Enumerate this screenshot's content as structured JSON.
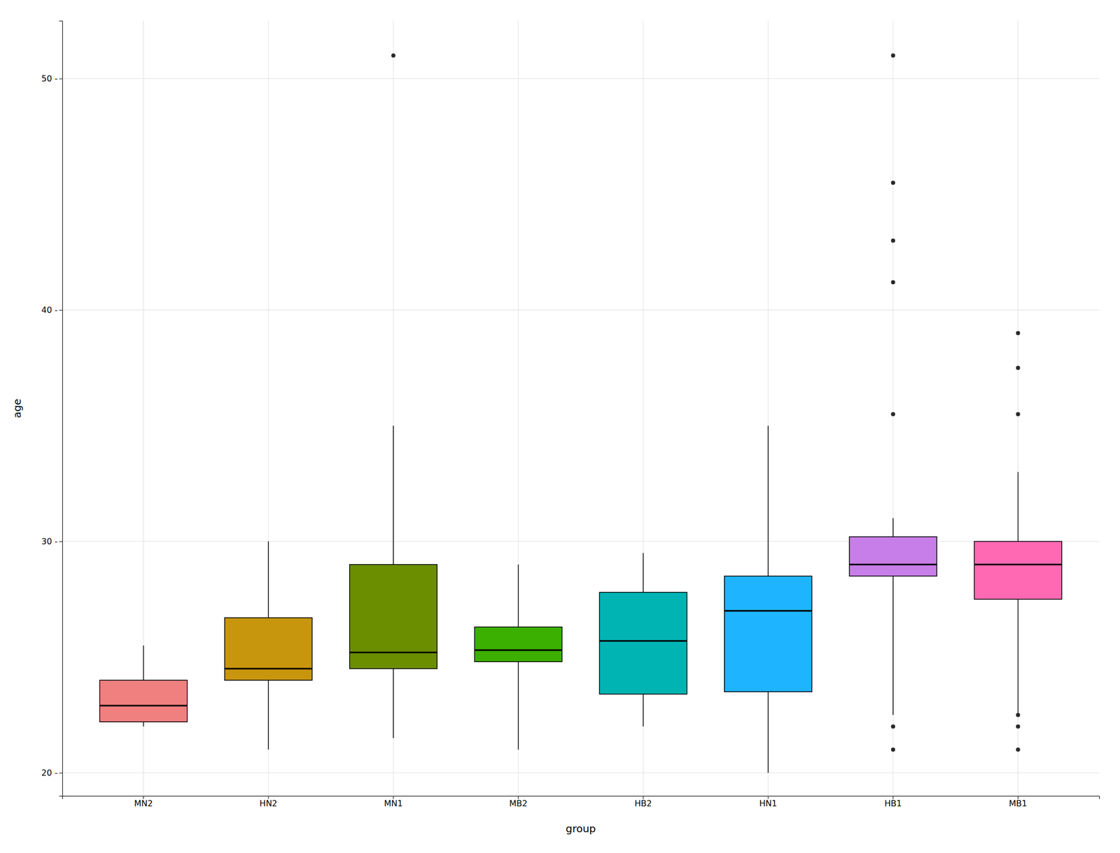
{
  "chart_data": {
    "type": "box",
    "xlabel": "group",
    "ylabel": "age",
    "categories": [
      "MN2",
      "HN2",
      "MN1",
      "MB2",
      "HB2",
      "HN1",
      "HB1",
      "MB1"
    ],
    "colors": [
      "#F08080",
      "#C8960C",
      "#6B8E00",
      "#3CB000",
      "#00B4B4",
      "#1EB4FF",
      "#C87EE8",
      "#FF69B4"
    ],
    "boxes": [
      {
        "q1": 22.2,
        "median": 22.9,
        "q3": 24.0,
        "whisker_low": 22.0,
        "whisker_high": 25.5,
        "outliers": []
      },
      {
        "q1": 24.0,
        "median": 24.5,
        "q3": 26.7,
        "whisker_low": 21.0,
        "whisker_high": 30.0,
        "outliers": []
      },
      {
        "q1": 24.5,
        "median": 25.2,
        "q3": 29.0,
        "whisker_low": 21.5,
        "whisker_high": 35.0,
        "outliers": [
          51.0
        ]
      },
      {
        "q1": 24.8,
        "median": 25.3,
        "q3": 26.3,
        "whisker_low": 21.0,
        "whisker_high": 29.0,
        "outliers": []
      },
      {
        "q1": 23.4,
        "median": 25.7,
        "q3": 27.8,
        "whisker_low": 22.0,
        "whisker_high": 29.5,
        "outliers": []
      },
      {
        "q1": 23.5,
        "median": 27.0,
        "q3": 28.5,
        "whisker_low": 20.0,
        "whisker_high": 35.0,
        "outliers": []
      },
      {
        "q1": 28.5,
        "median": 29.0,
        "q3": 30.2,
        "whisker_low": 22.5,
        "whisker_high": 31.0,
        "outliers": [
          35.5,
          41.2,
          43.0,
          45.5,
          51.0,
          21.0,
          22.0
        ]
      },
      {
        "q1": 27.5,
        "median": 29.0,
        "q3": 30.0,
        "whisker_low": 22.5,
        "whisker_high": 33.0,
        "outliers": [
          35.5,
          37.5,
          39.0,
          21.0,
          22.0,
          22.5
        ]
      }
    ],
    "ylim": [
      19.0,
      52.5
    ],
    "yticks": [
      {
        "value": 20,
        "label": "20 -"
      },
      {
        "value": 30,
        "label": "30 -"
      },
      {
        "value": 40,
        "label": "40 -"
      },
      {
        "value": 50,
        "label": "50 -"
      }
    ],
    "grid": true
  }
}
